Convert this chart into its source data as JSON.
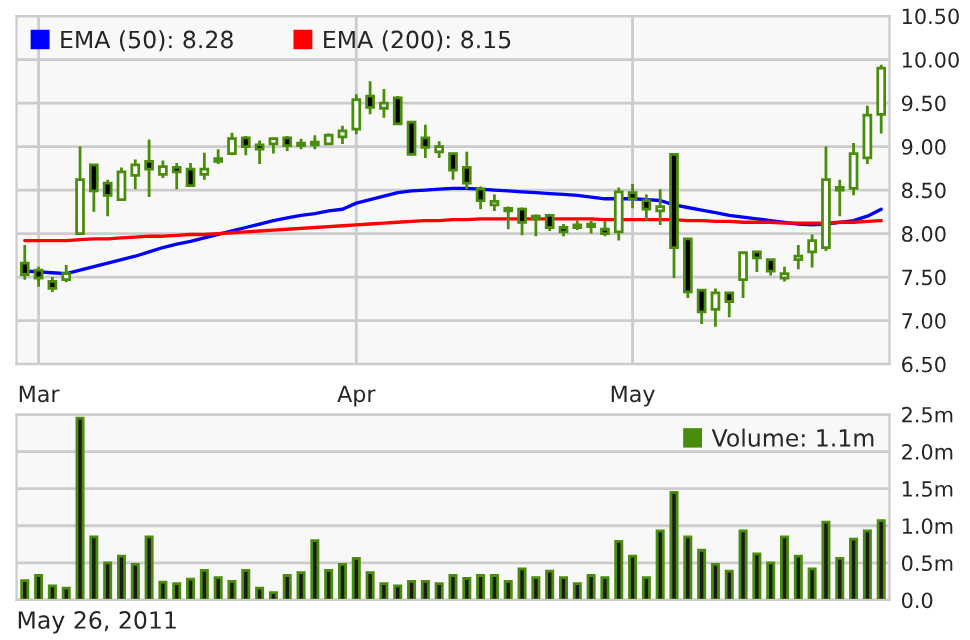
{
  "chart_data": [
    {
      "type": "candlestick",
      "categories": [
        null,
        "Mar",
        null,
        null,
        null,
        null,
        null,
        null,
        null,
        null,
        null,
        null,
        null,
        null,
        null,
        null,
        null,
        null,
        null,
        null,
        null,
        null,
        null,
        null,
        "Apr",
        null,
        null,
        null,
        null,
        null,
        null,
        null,
        null,
        null,
        null,
        null,
        null,
        null,
        null,
        null,
        null,
        null,
        null,
        null,
        "May",
        null,
        null,
        null,
        null,
        null,
        null,
        null,
        null,
        null,
        null,
        null,
        null,
        null,
        null,
        null,
        null,
        null,
        null
      ],
      "ohlc": [
        [
          7.66,
          7.87,
          7.47,
          7.53
        ],
        [
          7.58,
          7.62,
          7.39,
          7.49
        ],
        [
          7.45,
          7.5,
          7.33,
          7.37
        ],
        [
          7.47,
          7.64,
          7.44,
          7.54
        ],
        [
          8.0,
          9.0,
          8.0,
          8.62
        ],
        [
          8.79,
          8.79,
          8.25,
          8.49
        ],
        [
          8.58,
          8.62,
          8.2,
          8.44
        ],
        [
          8.39,
          8.76,
          8.39,
          8.71
        ],
        [
          8.67,
          8.85,
          8.51,
          8.79
        ],
        [
          8.83,
          9.08,
          8.42,
          8.74
        ],
        [
          8.68,
          8.84,
          8.64,
          8.77
        ],
        [
          8.76,
          8.81,
          8.51,
          8.71
        ],
        [
          8.74,
          8.81,
          8.54,
          8.55
        ],
        [
          8.68,
          8.93,
          8.62,
          8.74
        ],
        [
          8.83,
          8.97,
          8.8,
          8.86
        ],
        [
          8.92,
          9.16,
          8.9,
          9.09
        ],
        [
          9.1,
          9.12,
          8.9,
          9.0
        ],
        [
          9.02,
          9.07,
          8.8,
          8.97
        ],
        [
          9.03,
          9.1,
          8.92,
          9.09
        ],
        [
          9.1,
          9.12,
          8.95,
          9.01
        ],
        [
          9.04,
          9.09,
          8.97,
          9.01
        ],
        [
          9.02,
          9.13,
          8.97,
          9.05
        ],
        [
          9.03,
          9.15,
          9.02,
          9.13
        ],
        [
          9.11,
          9.24,
          9.03,
          9.18
        ],
        [
          9.2,
          9.6,
          9.14,
          9.54
        ],
        [
          9.58,
          9.75,
          9.37,
          9.45
        ],
        [
          9.44,
          9.66,
          9.33,
          9.5
        ],
        [
          9.56,
          9.58,
          9.26,
          9.26
        ],
        [
          9.28,
          9.28,
          8.91,
          8.91
        ],
        [
          9.1,
          9.25,
          8.87,
          8.99
        ],
        [
          8.94,
          9.06,
          8.87,
          9.0
        ],
        [
          8.92,
          8.92,
          8.62,
          8.73
        ],
        [
          8.76,
          8.94,
          8.51,
          8.58
        ],
        [
          8.51,
          8.54,
          8.28,
          8.38
        ],
        [
          8.33,
          8.45,
          8.26,
          8.37
        ],
        [
          8.26,
          8.31,
          8.05,
          8.29
        ],
        [
          8.28,
          8.3,
          7.98,
          8.13
        ],
        [
          8.17,
          8.22,
          7.97,
          8.2
        ],
        [
          8.21,
          8.21,
          8.03,
          8.07
        ],
        [
          8.07,
          8.11,
          7.97,
          8.02
        ],
        [
          8.07,
          8.15,
          8.04,
          8.1
        ],
        [
          8.08,
          8.15,
          8.0,
          8.11
        ],
        [
          8.05,
          8.15,
          7.97,
          8.0
        ],
        [
          8.02,
          8.53,
          7.92,
          8.48
        ],
        [
          8.47,
          8.57,
          8.29,
          8.4
        ],
        [
          8.38,
          8.45,
          8.15,
          8.28
        ],
        [
          8.26,
          8.51,
          8.1,
          8.31
        ],
        [
          8.91,
          8.91,
          7.49,
          7.84
        ],
        [
          7.94,
          7.94,
          7.26,
          7.33
        ],
        [
          7.35,
          7.35,
          6.96,
          7.1
        ],
        [
          7.13,
          7.37,
          6.93,
          7.32
        ],
        [
          7.32,
          7.32,
          7.04,
          7.22
        ],
        [
          7.47,
          7.79,
          7.26,
          7.78
        ],
        [
          7.79,
          7.79,
          7.56,
          7.72
        ],
        [
          7.7,
          7.7,
          7.52,
          7.57
        ],
        [
          7.49,
          7.62,
          7.45,
          7.54
        ],
        [
          7.7,
          7.87,
          7.59,
          7.74
        ],
        [
          7.79,
          7.99,
          7.61,
          7.92
        ],
        [
          7.84,
          9.0,
          7.8,
          8.62
        ],
        [
          8.5,
          8.62,
          8.2,
          8.53
        ],
        [
          8.52,
          9.04,
          8.44,
          8.92
        ],
        [
          8.87,
          9.47,
          8.8,
          9.36
        ],
        [
          9.37,
          9.94,
          9.15,
          9.9
        ]
      ],
      "series": [
        {
          "name": "EMA (50): 8.28",
          "type": "line",
          "color": "#0000ff",
          "values": [
            7.57,
            7.56,
            7.55,
            7.54,
            7.58,
            7.62,
            7.66,
            7.7,
            7.74,
            7.79,
            7.84,
            7.88,
            7.91,
            7.95,
            7.99,
            8.03,
            8.07,
            8.11,
            8.15,
            8.18,
            8.21,
            8.23,
            8.26,
            8.28,
            8.35,
            8.39,
            8.43,
            8.47,
            8.49,
            8.5,
            8.51,
            8.52,
            8.52,
            8.51,
            8.5,
            8.49,
            8.48,
            8.47,
            8.46,
            8.45,
            8.44,
            8.42,
            8.4,
            8.4,
            8.4,
            8.39,
            8.38,
            8.33,
            8.3,
            8.27,
            8.24,
            8.21,
            8.19,
            8.17,
            8.15,
            8.13,
            8.11,
            8.1,
            8.11,
            8.13,
            8.15,
            8.2,
            8.28
          ]
        },
        {
          "name": "EMA (200): 8.15",
          "type": "line",
          "color": "#ff0000",
          "values": [
            7.92,
            7.92,
            7.92,
            7.92,
            7.93,
            7.94,
            7.94,
            7.95,
            7.96,
            7.97,
            7.97,
            7.98,
            7.99,
            7.99,
            8.0,
            8.01,
            8.02,
            8.03,
            8.04,
            8.05,
            8.06,
            8.07,
            8.08,
            8.09,
            8.1,
            8.11,
            8.12,
            8.13,
            8.14,
            8.15,
            8.15,
            8.16,
            8.16,
            8.17,
            8.17,
            8.17,
            8.17,
            8.17,
            8.17,
            8.17,
            8.17,
            8.17,
            8.16,
            8.16,
            8.16,
            8.16,
            8.16,
            8.16,
            8.15,
            8.15,
            8.14,
            8.14,
            8.13,
            8.13,
            8.13,
            8.12,
            8.12,
            8.12,
            8.12,
            8.13,
            8.13,
            8.14,
            8.15
          ]
        }
      ],
      "ylim": [
        6.5,
        10.5
      ],
      "yticks": [
        {
          "value": 6.5,
          "label": "6.50"
        },
        {
          "value": 7,
          "label": "7.00"
        },
        {
          "value": 7.5,
          "label": "7.50"
        },
        {
          "value": 8,
          "label": "8.00"
        },
        {
          "value": 8.5,
          "label": "8.50"
        },
        {
          "value": 9,
          "label": "9.00"
        },
        {
          "value": 9.5,
          "label": "9.50"
        },
        {
          "value": 10,
          "label": "10.00"
        },
        {
          "value": 10.5,
          "label": "10.50"
        }
      ],
      "grid": true,
      "legend": "top left"
    },
    {
      "type": "bar",
      "categories": [
        null,
        null,
        null,
        null,
        null,
        null,
        null,
        null,
        null,
        null,
        null,
        null,
        null,
        null,
        null,
        null,
        null,
        null,
        null,
        null,
        null,
        null,
        null,
        null,
        null,
        null,
        null,
        null,
        null,
        null,
        null,
        null,
        null,
        null,
        null,
        null,
        null,
        null,
        null,
        null,
        null,
        null,
        null,
        null,
        null,
        null,
        null,
        null,
        null,
        null,
        null,
        null,
        null,
        null,
        null,
        null,
        null,
        null,
        null,
        null,
        null,
        null,
        null
      ],
      "series": [
        {
          "name": "Volume: 1.1m",
          "color": "#4a8c0c",
          "values": [
            0.26,
            0.33,
            0.19,
            0.16,
            2.45,
            0.85,
            0.5,
            0.59,
            0.48,
            0.85,
            0.24,
            0.22,
            0.28,
            0.4,
            0.3,
            0.25,
            0.4,
            0.16,
            0.1,
            0.33,
            0.37,
            0.8,
            0.4,
            0.48,
            0.56,
            0.37,
            0.22,
            0.19,
            0.25,
            0.25,
            0.22,
            0.33,
            0.29,
            0.33,
            0.33,
            0.25,
            0.42,
            0.3,
            0.39,
            0.3,
            0.22,
            0.33,
            0.3,
            0.79,
            0.59,
            0.3,
            0.93,
            1.45,
            0.85,
            0.67,
            0.48,
            0.39,
            0.93,
            0.62,
            0.5,
            0.85,
            0.59,
            0.42,
            1.05,
            0.56,
            0.82,
            0.93,
            1.07
          ]
        }
      ],
      "ylim": [
        0,
        2.5
      ],
      "yticks": [
        {
          "value": 0,
          "label": "0.0"
        },
        {
          "value": 0.5,
          "label": "0.5m"
        },
        {
          "value": 1,
          "label": "1.0m"
        },
        {
          "value": 1.5,
          "label": "1.5m"
        },
        {
          "value": 2,
          "label": "2.0m"
        },
        {
          "value": 2.5,
          "label": "2.5m"
        }
      ],
      "tick_labels": "y",
      "grid": "y",
      "legend": "top right",
      "annotations": [
        "May 26, 2011"
      ]
    }
  ]
}
